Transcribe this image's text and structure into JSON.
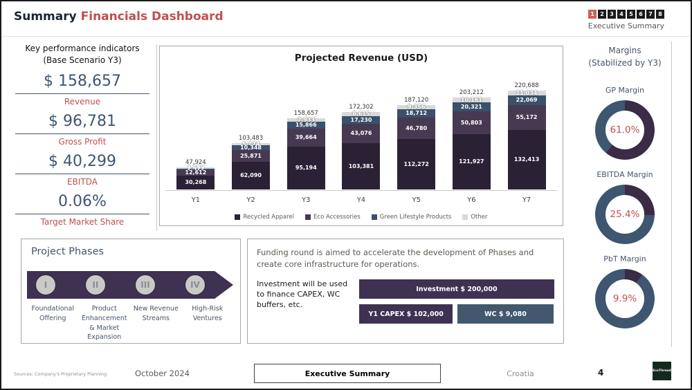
{
  "header": {
    "title_black": "Summary",
    "title_red": " Financials Dashboard",
    "pager": [
      "1",
      "2",
      "3",
      "4",
      "5",
      "6",
      "7",
      "8"
    ],
    "pager_active_index": 0,
    "pager_caption": "Executive Summary"
  },
  "kpi": {
    "title_line1": "Key performance indicators",
    "title_line2": "(Base Scenario Y3)",
    "items": [
      {
        "value": "$ 158,657",
        "label": "Revenue"
      },
      {
        "value": "$ 96,781",
        "label": "Gross Profit"
      },
      {
        "value": "$ 40,299",
        "label": "EBITDA"
      },
      {
        "value": "0.06%",
        "label": "Target Market Share"
      }
    ]
  },
  "chart_data": {
    "type": "bar",
    "stacked": true,
    "title": "Projected Revenue (USD)",
    "categories": [
      "Y1",
      "Y2",
      "Y3",
      "Y4",
      "Y5",
      "Y6",
      "Y7"
    ],
    "series": [
      {
        "name": "Recycled Apparel",
        "color": "#2b2135",
        "values": [
          30268,
          62090,
          95194,
          103381,
          112272,
          121927,
          132413
        ]
      },
      {
        "name": "Eco Accessories",
        "color": "#473952",
        "values": [
          12612,
          25871,
          39664,
          43076,
          46780,
          50803,
          55172
        ]
      },
      {
        "name": "Green Lifestyle Products",
        "color": "#3a506b",
        "values": [
          2522,
          10348,
          15866,
          17230,
          18712,
          20321,
          22069
        ]
      },
      {
        "name": "Other",
        "color": "#d9d9d9",
        "values": [
          2522,
          5174,
          7933,
          8615,
          9356,
          10161,
          11034
        ]
      }
    ],
    "totals": [
      47924,
      103483,
      158657,
      172302,
      187120,
      203212,
      220688
    ],
    "ylim": [
      0,
      230000
    ],
    "legend_position": "bottom"
  },
  "margins_panel": {
    "title_line1": "Margins",
    "title_line2": "(Stabilized by Y3)",
    "donut_value_color": "#3a2b46",
    "donut_rest_color": "#3e566f",
    "gauges": [
      {
        "label": "GP Margin",
        "value": 61.0,
        "display": "61.0%"
      },
      {
        "label": "EBITDA Margin",
        "value": 25.4,
        "display": "25.4%"
      },
      {
        "label": "PbT Margin",
        "value": 9.9,
        "display": "9.9%"
      }
    ]
  },
  "phases": {
    "title": "Project Phases",
    "items": [
      {
        "numeral": "I",
        "label": "Foundational Offering"
      },
      {
        "numeral": "II",
        "label": "Product Enhancement & Market Expansion"
      },
      {
        "numeral": "III",
        "label": "New Revenue Streams"
      },
      {
        "numeral": "IV",
        "label": "High-Risk Ventures"
      }
    ]
  },
  "funding": {
    "headline": "Funding round is aimed to accelerate the development of Phases and create core infrastructure for operations.",
    "note": "Investment will be used to finance CAPEX, WC buffers, etc.",
    "bars": [
      {
        "label": "Investment $ 200,000",
        "color": "#3f3152",
        "width_pct": 100
      },
      {
        "label": "Y1 CAPEX $ 102,000",
        "color": "#3f3152",
        "width_pct": 48
      },
      {
        "label": "WC $ 9,080",
        "color": "#41586f",
        "width_pct": 49
      }
    ]
  },
  "footer": {
    "sources": "Sources: Company's Proprietary Planning",
    "date": "October 2024",
    "center_button": "Executive Summary",
    "country": "Croatia",
    "page_number": "4",
    "logo_text": "EcoThread"
  },
  "colors": {
    "accent_red": "#c0504d",
    "navy": "#3f5572",
    "pager_active": "#c9625e",
    "band_purple": "#3f3152",
    "logo_green": "#152a1f"
  }
}
